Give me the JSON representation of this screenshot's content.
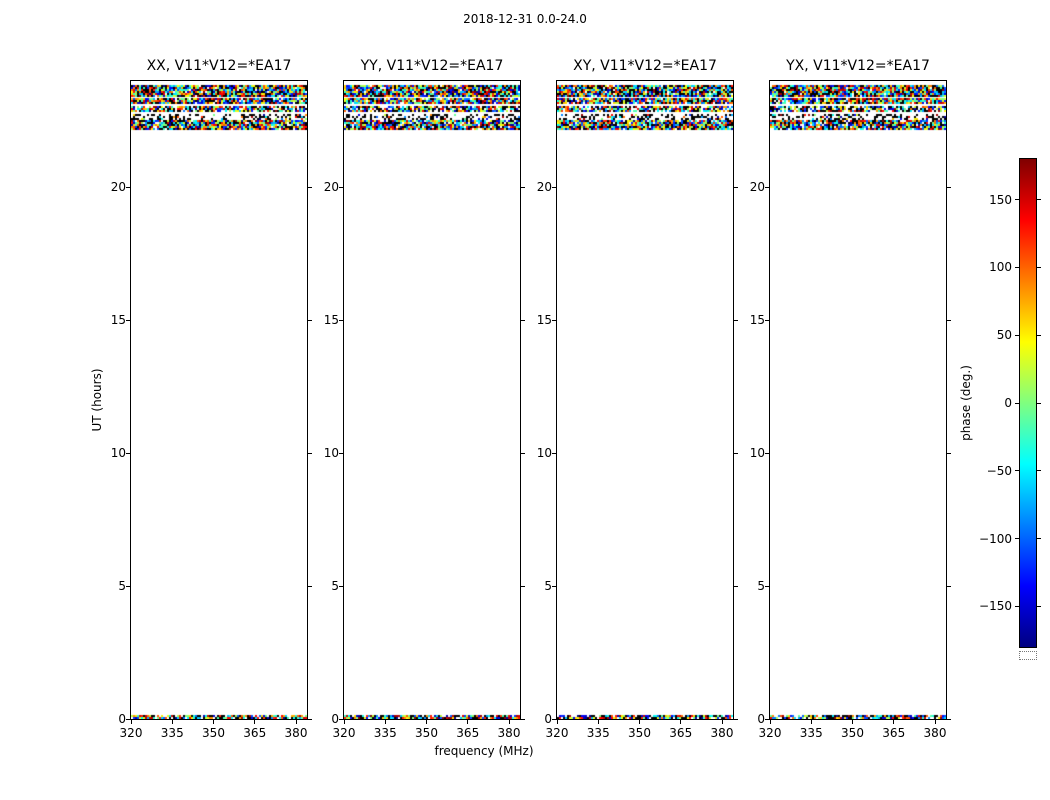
{
  "colors": {
    "background": "#ffffff",
    "frame": "#000000",
    "text": "#000000"
  },
  "chart_data": {
    "type": "heatmap",
    "title": "2018-12-31 0.0-24.0",
    "xlabel": "frequency (MHz)",
    "ylabel": "UT (hours)",
    "xlim": [
      320,
      384
    ],
    "ylim": [
      0,
      24
    ],
    "xticks": [
      320,
      335,
      350,
      365,
      380
    ],
    "yticks": [
      0,
      5,
      10,
      15,
      20
    ],
    "grid": false,
    "panels": [
      {
        "title": "XX, V11*V12=*EA17"
      },
      {
        "title": "YY, V11*V12=*EA17"
      },
      {
        "title": "XY, V11*V12=*EA17"
      },
      {
        "title": "YX, V11*V12=*EA17"
      }
    ],
    "colorbar": {
      "label": "phase (deg.)",
      "ticks": [
        150,
        100,
        50,
        0,
        -50,
        -100,
        -150
      ],
      "range": [
        -180,
        180
      ],
      "colormap": "jet",
      "gradient_stops": [
        {
          "pos": 0.0,
          "color": "#000080"
        },
        {
          "pos": 0.125,
          "color": "#0000ff"
        },
        {
          "pos": 0.375,
          "color": "#00ffff"
        },
        {
          "pos": 0.625,
          "color": "#ffff00"
        },
        {
          "pos": 0.875,
          "color": "#ff0000"
        },
        {
          "pos": 1.0,
          "color": "#800000"
        }
      ]
    },
    "data_description": "Random visibility phase values spanning -180..180 deg, present only in narrow UT bands; the rest of the 0-24 h range is blank in all four correlation panels.",
    "noise_bands_ut": [
      {
        "ut_start": 23.4,
        "ut_end": 23.85,
        "density": 0.97,
        "black_fraction": 0.25
      },
      {
        "ut_start": 23.12,
        "ut_end": 23.35,
        "density": 0.92,
        "black_fraction": 0.22
      },
      {
        "ut_start": 22.82,
        "ut_end": 23.05,
        "density": 0.8,
        "black_fraction": 0.3
      },
      {
        "ut_start": 22.58,
        "ut_end": 22.74,
        "density": 0.4,
        "black_fraction": 0.75
      },
      {
        "ut_start": 22.18,
        "ut_end": 22.52,
        "density": 0.92,
        "black_fraction": 0.22
      },
      {
        "ut_start": 0.0,
        "ut_end": 0.15,
        "density": 0.85,
        "black_fraction": 0.25
      }
    ]
  }
}
